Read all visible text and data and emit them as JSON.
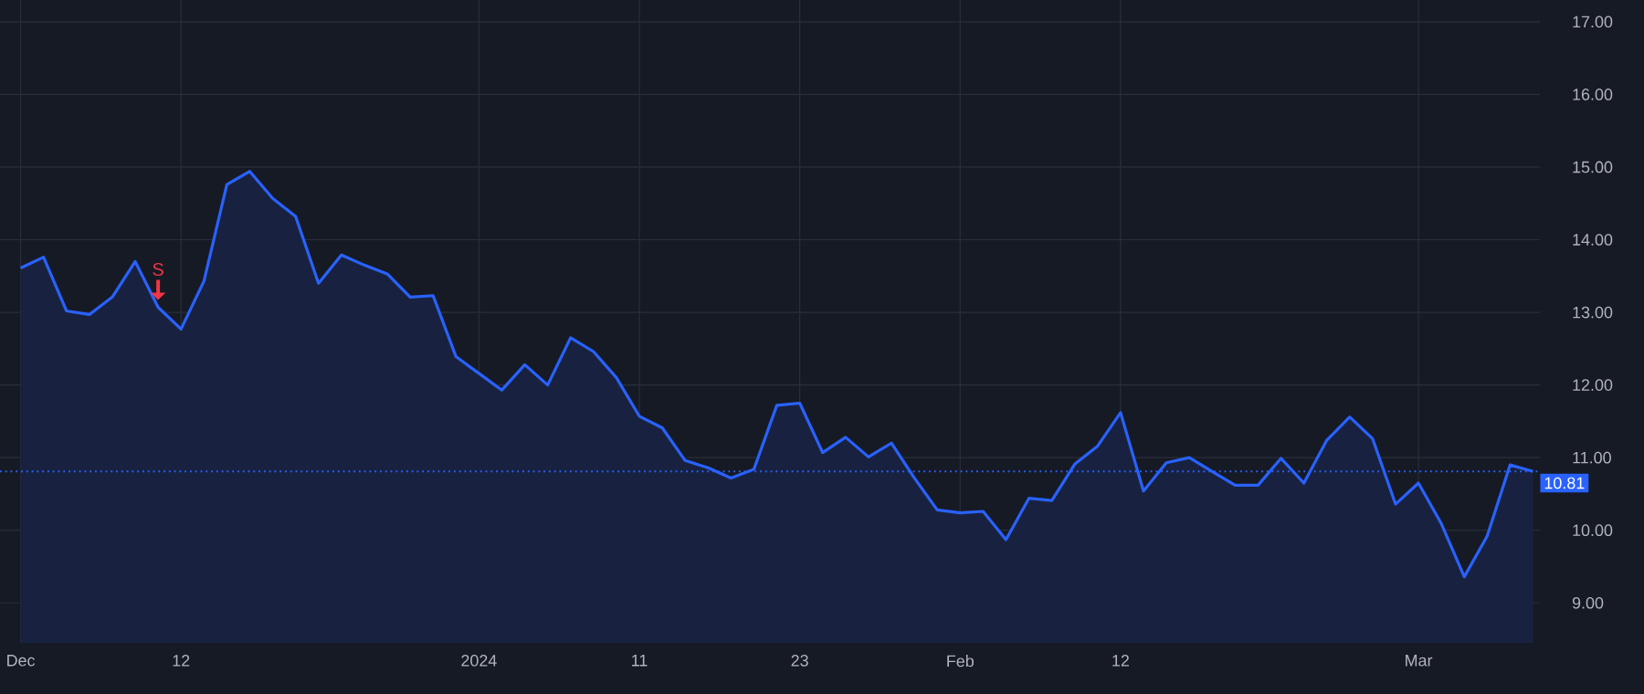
{
  "chart_data": {
    "type": "area",
    "categories": [
      "Dec",
      null,
      null,
      null,
      null,
      null,
      null,
      "12",
      null,
      null,
      null,
      null,
      null,
      null,
      null,
      null,
      null,
      null,
      null,
      null,
      "2024",
      null,
      null,
      null,
      null,
      null,
      null,
      "11",
      null,
      null,
      null,
      null,
      null,
      null,
      "23",
      null,
      null,
      null,
      null,
      null,
      null,
      "Feb",
      null,
      null,
      null,
      null,
      null,
      null,
      "12",
      null,
      null,
      null,
      null,
      null,
      null,
      null,
      null,
      null,
      null,
      null,
      null,
      "Mar",
      null,
      null,
      null,
      null,
      null
    ],
    "series": [
      {
        "color": "#2962ff",
        "values": [
          13.61,
          13.76,
          13.02,
          12.97,
          13.21,
          13.7,
          13.07,
          12.77,
          13.43,
          14.76,
          14.94,
          14.57,
          14.32,
          13.4,
          13.79,
          13.65,
          13.53,
          13.21,
          13.23,
          12.39,
          12.16,
          11.93,
          12.28,
          12.0,
          12.65,
          12.46,
          12.1,
          11.57,
          11.41,
          10.96,
          10.86,
          10.72,
          10.84,
          11.72,
          11.75,
          11.07,
          11.28,
          11.01,
          11.2,
          10.72,
          10.28,
          10.24,
          10.26,
          9.87,
          10.44,
          10.41,
          10.91,
          11.16,
          11.62,
          10.54,
          10.93,
          11.0,
          10.81,
          10.62,
          10.62,
          10.99,
          10.65,
          11.24,
          11.56,
          11.26,
          10.36,
          10.65,
          10.09,
          9.36,
          9.92,
          10.9,
          10.81
        ]
      }
    ],
    "ylim": [
      8.45,
      17.3
    ],
    "yticks": [
      {
        "value": 9,
        "label": "9.00"
      },
      {
        "value": 10,
        "label": "10.00"
      },
      {
        "value": 11,
        "label": "11.00"
      },
      {
        "value": 12,
        "label": "12.00"
      },
      {
        "value": 13,
        "label": "13.00"
      },
      {
        "value": 14,
        "label": "14.00"
      },
      {
        "value": 15,
        "label": "15.00"
      },
      {
        "value": 16,
        "label": "16.00"
      },
      {
        "value": 17,
        "label": "17.00"
      }
    ],
    "grid": true,
    "line_style": "solid",
    "ref_lines": [
      {
        "axis": "y",
        "value": 10.81,
        "label": "10.81",
        "color": "#2962ff",
        "line_style": "dotted"
      }
    ],
    "annotations": [
      {
        "text": "S",
        "y": 13.07
      }
    ]
  }
}
